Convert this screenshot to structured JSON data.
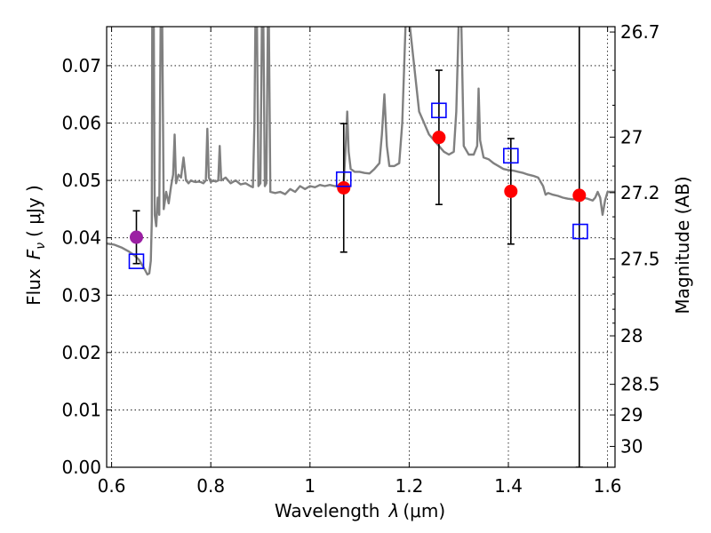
{
  "chart_data": {
    "type": "scatter",
    "xlabel_prefix": "Wavelength",
    "xlabel_symbol": "λ",
    "xlabel_unit": "(μm)",
    "ylabel_prefix": "Flux",
    "ylabel_symbol": "F",
    "ylabel_sub": "ν",
    "ylabel_unit": "(  μJy  )",
    "y2label": "Magnitude (AB)",
    "xlim": [
      0.59,
      1.615
    ],
    "ylim": [
      0.0,
      0.0768
    ],
    "grid": true,
    "x_ticks": [
      {
        "value": 0.6,
        "label": "0.6"
      },
      {
        "value": 0.8,
        "label": "0.8"
      },
      {
        "value": 1.0,
        "label": "1"
      },
      {
        "value": 1.2,
        "label": "1.2"
      },
      {
        "value": 1.4,
        "label": "1.4"
      },
      {
        "value": 1.6,
        "label": "1.6"
      }
    ],
    "y_ticks": [
      {
        "value": 0.0,
        "label": "0.00"
      },
      {
        "value": 0.01,
        "label": "0.01"
      },
      {
        "value": 0.02,
        "label": "0.02"
      },
      {
        "value": 0.03,
        "label": "0.03"
      },
      {
        "value": 0.04,
        "label": "0.04"
      },
      {
        "value": 0.05,
        "label": "0.05"
      },
      {
        "value": 0.06,
        "label": "0.06"
      },
      {
        "value": 0.07,
        "label": "0.07"
      }
    ],
    "mag_ticks": [
      {
        "mag": 26.7,
        "label": "26.7"
      },
      {
        "mag": 27.0,
        "label": "27"
      },
      {
        "mag": 27.2,
        "label": "27.2"
      },
      {
        "mag": 27.5,
        "label": "27.5"
      },
      {
        "mag": 28.0,
        "label": "28"
      },
      {
        "mag": 28.5,
        "label": "28.5"
      },
      {
        "mag": 29.0,
        "label": "29"
      },
      {
        "mag": 30.0,
        "label": "30"
      }
    ],
    "mag_minor_ticks": [
      26.8,
      26.9,
      27.1,
      27.3,
      27.4,
      27.6,
      27.7,
      27.8,
      27.9
    ],
    "observed_points": [
      {
        "x": 0.65,
        "y": 0.0401,
        "yerr_low": 0.0046,
        "yerr_high": 0.0046,
        "color": "#9b1fa3"
      },
      {
        "x": 1.068,
        "y": 0.0487,
        "yerr_low": 0.0112,
        "yerr_high": 0.0112,
        "color": "#ff0000"
      },
      {
        "x": 1.26,
        "y": 0.0575,
        "yerr_low": 0.0117,
        "yerr_high": 0.0117,
        "color": "#ff0000"
      },
      {
        "x": 1.405,
        "y": 0.0481,
        "yerr_low": 0.0092,
        "yerr_high": 0.0092,
        "color": "#ff0000"
      },
      {
        "x": 1.543,
        "y": 0.0474,
        "yerr_low": 0.0474,
        "yerr_high": 0.05,
        "color": "#ff0000"
      }
    ],
    "model_points": [
      {
        "x": 0.65,
        "y": 0.0359
      },
      {
        "x": 1.068,
        "y": 0.0502
      },
      {
        "x": 1.26,
        "y": 0.0622
      },
      {
        "x": 1.405,
        "y": 0.0543
      },
      {
        "x": 1.545,
        "y": 0.0411
      }
    ],
    "model_spectrum": [
      [
        0.59,
        0.039
      ],
      [
        0.605,
        0.0388
      ],
      [
        0.62,
        0.0383
      ],
      [
        0.635,
        0.0376
      ],
      [
        0.645,
        0.037
      ],
      [
        0.655,
        0.0362
      ],
      [
        0.662,
        0.0352
      ],
      [
        0.668,
        0.0343
      ],
      [
        0.672,
        0.0336
      ],
      [
        0.676,
        0.0338
      ],
      [
        0.679,
        0.036
      ],
      [
        0.681,
        0.043
      ],
      [
        0.682,
        0.078
      ],
      [
        0.685,
        0.078
      ],
      [
        0.687,
        0.044
      ],
      [
        0.69,
        0.042
      ],
      [
        0.693,
        0.047
      ],
      [
        0.696,
        0.044
      ],
      [
        0.699,
        0.078
      ],
      [
        0.702,
        0.078
      ],
      [
        0.705,
        0.045
      ],
      [
        0.71,
        0.048
      ],
      [
        0.715,
        0.046
      ],
      [
        0.72,
        0.049
      ],
      [
        0.724,
        0.051
      ],
      [
        0.727,
        0.058
      ],
      [
        0.73,
        0.0495
      ],
      [
        0.735,
        0.051
      ],
      [
        0.74,
        0.0505
      ],
      [
        0.745,
        0.054
      ],
      [
        0.75,
        0.05
      ],
      [
        0.755,
        0.0495
      ],
      [
        0.76,
        0.05
      ],
      [
        0.765,
        0.0498
      ],
      [
        0.77,
        0.0497
      ],
      [
        0.775,
        0.0498
      ],
      [
        0.78,
        0.0497
      ],
      [
        0.785,
        0.0495
      ],
      [
        0.79,
        0.05
      ],
      [
        0.793,
        0.059
      ],
      [
        0.796,
        0.0505
      ],
      [
        0.8,
        0.0497
      ],
      [
        0.805,
        0.05
      ],
      [
        0.81,
        0.0498
      ],
      [
        0.815,
        0.05
      ],
      [
        0.818,
        0.056
      ],
      [
        0.821,
        0.05
      ],
      [
        0.83,
        0.0505
      ],
      [
        0.84,
        0.0495
      ],
      [
        0.85,
        0.05
      ],
      [
        0.86,
        0.0493
      ],
      [
        0.87,
        0.0495
      ],
      [
        0.88,
        0.049
      ],
      [
        0.885,
        0.0488
      ],
      [
        0.888,
        0.06
      ],
      [
        0.89,
        0.078
      ],
      [
        0.893,
        0.078
      ],
      [
        0.896,
        0.049
      ],
      [
        0.9,
        0.0495
      ],
      [
        0.903,
        0.078
      ],
      [
        0.906,
        0.078
      ],
      [
        0.909,
        0.049
      ],
      [
        0.912,
        0.0495
      ],
      [
        0.915,
        0.078
      ],
      [
        0.917,
        0.078
      ],
      [
        0.92,
        0.048
      ],
      [
        0.93,
        0.0478
      ],
      [
        0.94,
        0.048
      ],
      [
        0.95,
        0.0476
      ],
      [
        0.96,
        0.0485
      ],
      [
        0.97,
        0.048
      ],
      [
        0.98,
        0.049
      ],
      [
        0.99,
        0.0485
      ],
      [
        1.0,
        0.049
      ],
      [
        1.01,
        0.0488
      ],
      [
        1.02,
        0.0492
      ],
      [
        1.03,
        0.049
      ],
      [
        1.04,
        0.0492
      ],
      [
        1.05,
        0.049
      ],
      [
        1.06,
        0.049
      ],
      [
        1.068,
        0.0495
      ],
      [
        1.072,
        0.056
      ],
      [
        1.075,
        0.062
      ],
      [
        1.078,
        0.055
      ],
      [
        1.082,
        0.052
      ],
      [
        1.09,
        0.0515
      ],
      [
        1.1,
        0.0515
      ],
      [
        1.11,
        0.0513
      ],
      [
        1.12,
        0.0512
      ],
      [
        1.13,
        0.052
      ],
      [
        1.14,
        0.053
      ],
      [
        1.145,
        0.058
      ],
      [
        1.15,
        0.065
      ],
      [
        1.155,
        0.056
      ],
      [
        1.16,
        0.0525
      ],
      [
        1.17,
        0.0525
      ],
      [
        1.18,
        0.053
      ],
      [
        1.186,
        0.06
      ],
      [
        1.19,
        0.07
      ],
      [
        1.193,
        0.078
      ],
      [
        1.2,
        0.078
      ],
      [
        1.21,
        0.07
      ],
      [
        1.22,
        0.062
      ],
      [
        1.23,
        0.06
      ],
      [
        1.24,
        0.058
      ],
      [
        1.25,
        0.057
      ],
      [
        1.26,
        0.056
      ],
      [
        1.27,
        0.055
      ],
      [
        1.28,
        0.0545
      ],
      [
        1.29,
        0.055
      ],
      [
        1.295,
        0.062
      ],
      [
        1.3,
        0.078
      ],
      [
        1.305,
        0.078
      ],
      [
        1.31,
        0.056
      ],
      [
        1.32,
        0.0545
      ],
      [
        1.33,
        0.0545
      ],
      [
        1.337,
        0.056
      ],
      [
        1.34,
        0.066
      ],
      [
        1.343,
        0.057
      ],
      [
        1.35,
        0.054
      ],
      [
        1.36,
        0.0537
      ],
      [
        1.37,
        0.053
      ],
      [
        1.38,
        0.0525
      ],
      [
        1.39,
        0.052
      ],
      [
        1.4,
        0.0518
      ],
      [
        1.41,
        0.0517
      ],
      [
        1.42,
        0.0515
      ],
      [
        1.43,
        0.0513
      ],
      [
        1.44,
        0.051
      ],
      [
        1.45,
        0.0508
      ],
      [
        1.46,
        0.0505
      ],
      [
        1.47,
        0.049
      ],
      [
        1.475,
        0.0475
      ],
      [
        1.48,
        0.0478
      ],
      [
        1.49,
        0.0475
      ],
      [
        1.5,
        0.0473
      ],
      [
        1.51,
        0.047
      ],
      [
        1.52,
        0.0468
      ],
      [
        1.53,
        0.0467
      ],
      [
        1.54,
        0.0468
      ],
      [
        1.55,
        0.047
      ],
      [
        1.56,
        0.0468
      ],
      [
        1.57,
        0.0465
      ],
      [
        1.575,
        0.047
      ],
      [
        1.58,
        0.048
      ],
      [
        1.585,
        0.047
      ],
      [
        1.59,
        0.044
      ],
      [
        1.595,
        0.0465
      ],
      [
        1.6,
        0.048
      ],
      [
        1.615,
        0.048
      ]
    ],
    "series_colors": {
      "model_spectrum": "#808080",
      "model_points": "#0000ff",
      "error_bars": "#000000"
    }
  }
}
